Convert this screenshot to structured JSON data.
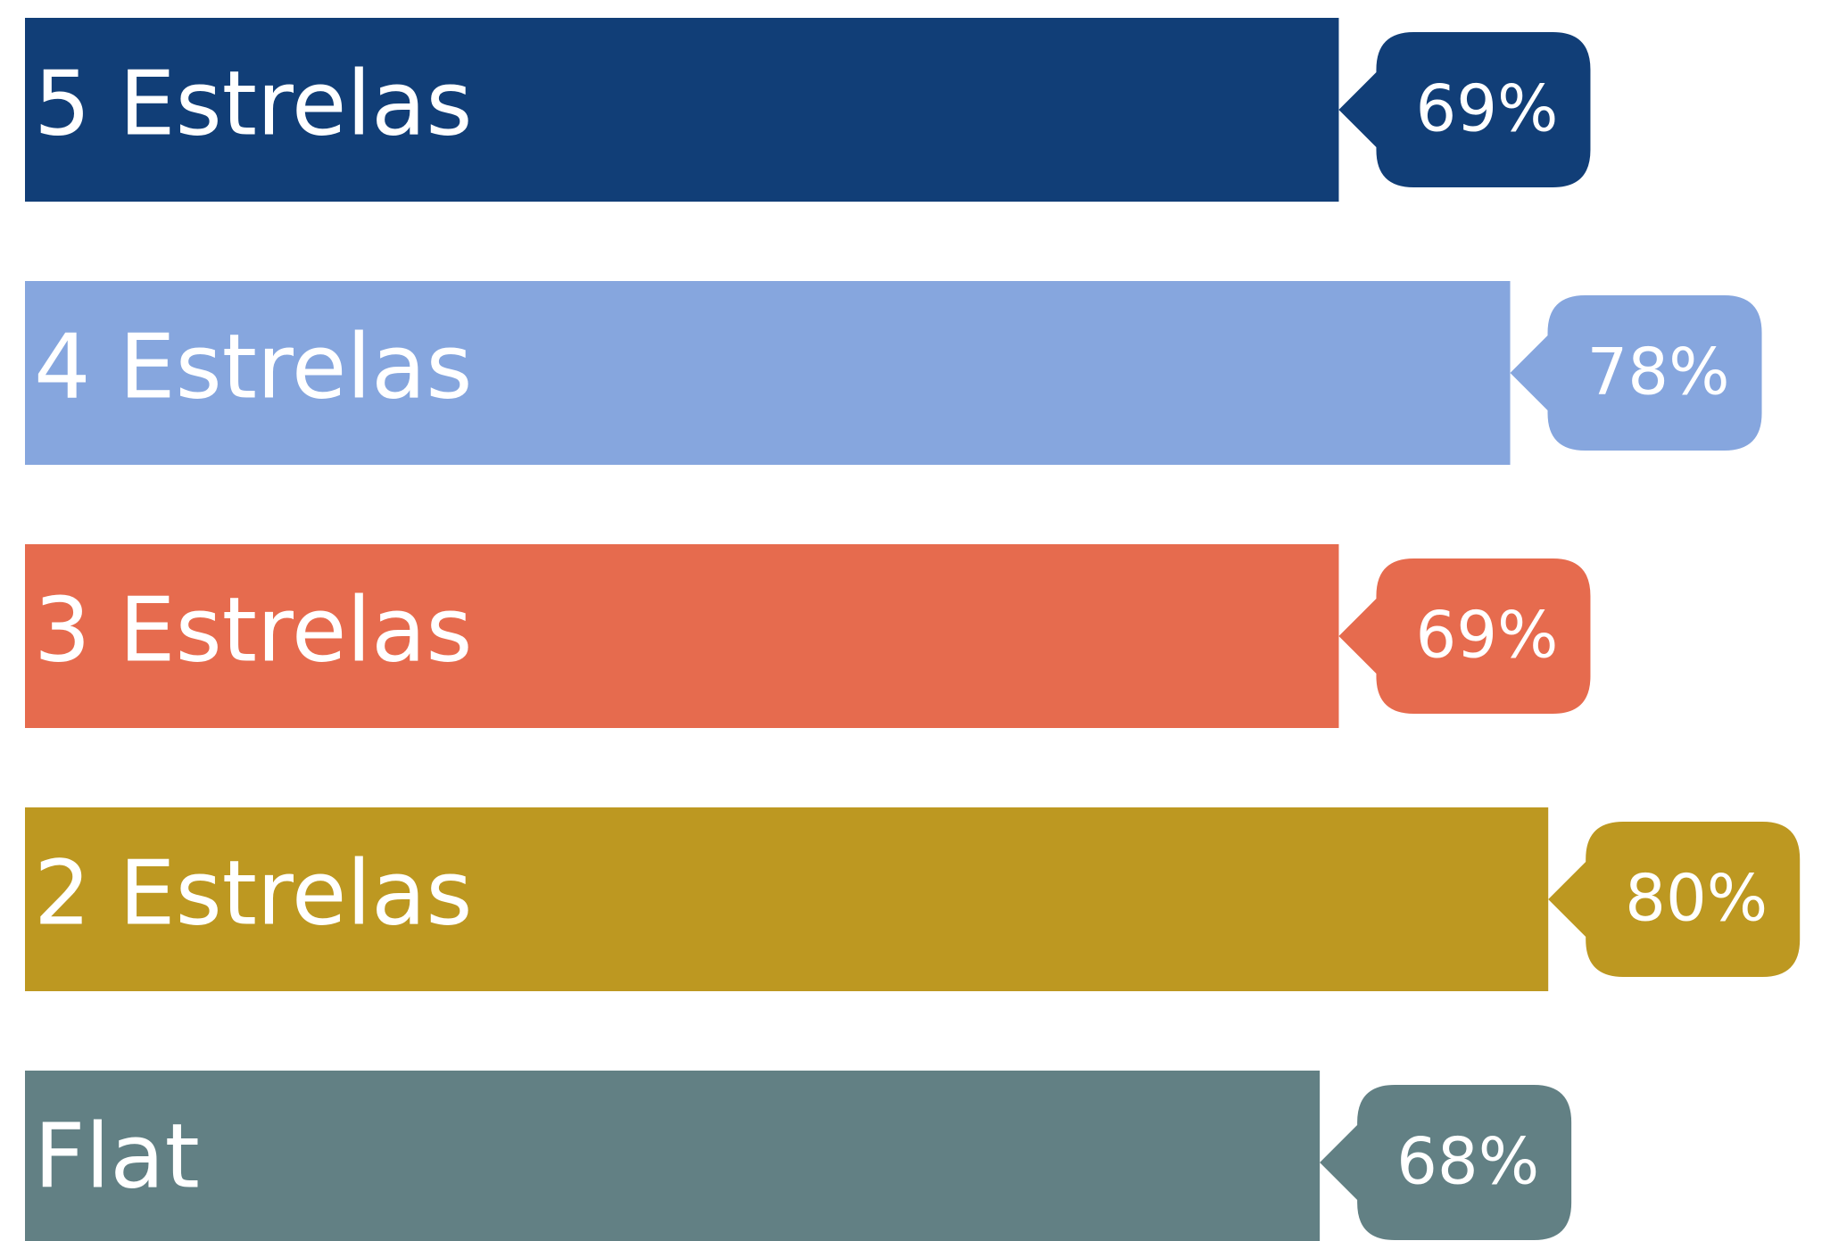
{
  "chart_data": {
    "type": "bar",
    "orientation": "horizontal",
    "categories": [
      "5 Estrelas",
      "4 Estrelas",
      "3 Estrelas",
      "2 Estrelas",
      "Flat"
    ],
    "values": [
      69,
      78,
      69,
      80,
      68
    ],
    "value_labels": [
      "69%",
      "78%",
      "69%",
      "80%",
      "68%"
    ],
    "colors": [
      "#113e77",
      "#86a6de",
      "#e66b4e",
      "#bd9821",
      "#628084"
    ],
    "xlim": [
      0,
      100
    ],
    "grid": false,
    "legend": "none"
  }
}
